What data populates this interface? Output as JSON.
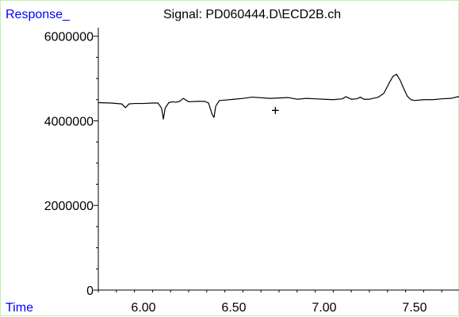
{
  "chart_data": {
    "type": "line",
    "title": "Signal: PD060444.D\\ECD2B.ch",
    "ylabel": "Response_",
    "xlabel": "Time",
    "x_ticks": [
      6.0,
      6.5,
      7.0,
      7.5
    ],
    "x_tick_labels": [
      "6.00",
      "6.50",
      "7.00",
      "7.50"
    ],
    "y_ticks": [
      0,
      2000000,
      4000000,
      6000000
    ],
    "y_tick_labels": [
      "0",
      "2000000",
      "4000000",
      "6000000"
    ],
    "xlim": [
      5.75,
      7.75
    ],
    "ylim": [
      0,
      6200000
    ],
    "grid": false,
    "series": [
      {
        "x": [
          5.75,
          5.82,
          5.88,
          5.9,
          5.92,
          5.95,
          6.0,
          6.05,
          6.08,
          6.1,
          6.11,
          6.12,
          6.14,
          6.16,
          6.18,
          6.2,
          6.22,
          6.25,
          6.3,
          6.34,
          6.36,
          6.38,
          6.39,
          6.4,
          6.42,
          6.45,
          6.5,
          6.55,
          6.6,
          6.7,
          6.8,
          6.85,
          6.9,
          6.95,
          7.0,
          7.05,
          7.1,
          7.12,
          7.15,
          7.18,
          7.2,
          7.22,
          7.25,
          7.3,
          7.33,
          7.36,
          7.38,
          7.4,
          7.42,
          7.44,
          7.46,
          7.48,
          7.5,
          7.55,
          7.6,
          7.65,
          7.7,
          7.74,
          7.75
        ],
        "y": [
          4430000,
          4420000,
          4400000,
          4310000,
          4400000,
          4410000,
          4410000,
          4420000,
          4420000,
          4300000,
          4040000,
          4300000,
          4430000,
          4450000,
          4440000,
          4460000,
          4530000,
          4450000,
          4460000,
          4460000,
          4420000,
          4150000,
          4080000,
          4350000,
          4480000,
          4490000,
          4510000,
          4530000,
          4560000,
          4530000,
          4550000,
          4510000,
          4530000,
          4520000,
          4510000,
          4500000,
          4520000,
          4570000,
          4510000,
          4520000,
          4560000,
          4510000,
          4510000,
          4560000,
          4650000,
          4900000,
          5050000,
          5100000,
          4960000,
          4760000,
          4580000,
          4500000,
          4480000,
          4500000,
          4500000,
          4520000,
          4530000,
          4570000,
          4570000
        ]
      }
    ],
    "annotations": [
      {
        "text": "+",
        "x": 6.73,
        "y": 4220000
      }
    ]
  }
}
